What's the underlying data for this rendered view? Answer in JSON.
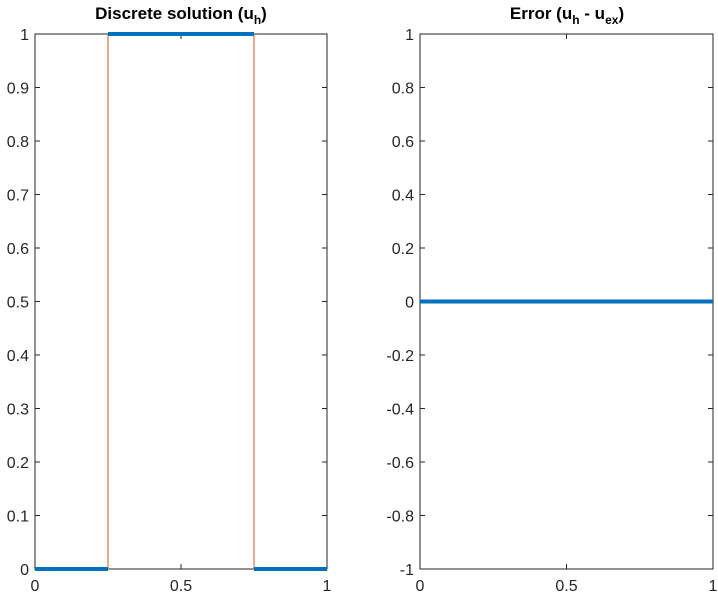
{
  "chart_data": [
    {
      "type": "line",
      "title": {
        "main": "Discrete solution (u",
        "sub": "h",
        "close": ")"
      },
      "xlabel": "",
      "ylabel": "",
      "xlim": [
        0,
        1
      ],
      "ylim": [
        0,
        1
      ],
      "x_ticks": [
        0,
        0.5,
        1
      ],
      "x_tick_labels": [
        "0",
        "0.5",
        "1"
      ],
      "y_ticks": [
        0,
        0.1,
        0.2,
        0.3,
        0.4,
        0.5,
        0.6,
        0.7,
        0.8,
        0.9,
        1
      ],
      "y_tick_labels": [
        "0",
        "0.1",
        "0.2",
        "0.3",
        "0.4",
        "0.5",
        "0.6",
        "0.7",
        "0.8",
        "0.9",
        "1"
      ],
      "grid": false,
      "series": [
        {
          "style": "thick-segments",
          "color": "#0072BD",
          "segments": [
            {
              "x": [
                0,
                0.25
              ],
              "y": [
                0,
                0
              ]
            },
            {
              "x": [
                0.25,
                0.75
              ],
              "y": [
                1,
                1
              ]
            },
            {
              "x": [
                0.75,
                1
              ],
              "y": [
                0,
                0
              ]
            }
          ]
        },
        {
          "style": "thin-line",
          "color": "#D95319",
          "x": [
            0,
            0.25,
            0.25,
            0.75,
            0.75,
            1
          ],
          "y": [
            0,
            0,
            1,
            1,
            0,
            0
          ]
        }
      ]
    },
    {
      "type": "line",
      "title": {
        "main": "Error (u",
        "sub": "h",
        "mid": " - u",
        "sub2": "ex",
        "close": ")"
      },
      "xlabel": "",
      "ylabel": "",
      "xlim": [
        0,
        1
      ],
      "ylim": [
        -1,
        1
      ],
      "x_ticks": [
        0,
        0.5,
        1
      ],
      "x_tick_labels": [
        "0",
        "0.5",
        "1"
      ],
      "y_ticks": [
        -1,
        -0.8,
        -0.6,
        -0.4,
        -0.2,
        0,
        0.2,
        0.4,
        0.6,
        0.8,
        1
      ],
      "y_tick_labels": [
        "-1",
        "-0.8",
        "-0.6",
        "-0.4",
        "-0.2",
        "0",
        "0.2",
        "0.4",
        "0.6",
        "0.8",
        "1"
      ],
      "grid": false,
      "series": [
        {
          "style": "thick-segments",
          "color": "#0072BD",
          "segments": [
            {
              "x": [
                0,
                1
              ],
              "y": [
                0,
                0
              ]
            }
          ]
        }
      ]
    }
  ]
}
